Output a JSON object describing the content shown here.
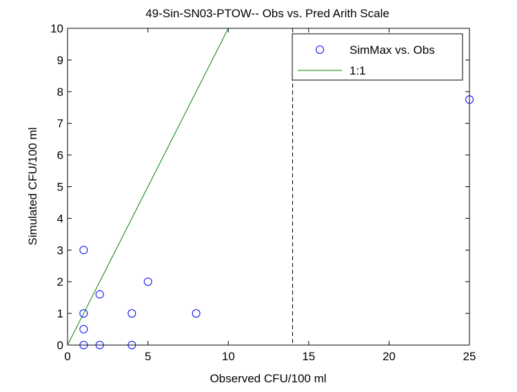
{
  "chart_data": {
    "type": "scatter",
    "title": "49-Sin-SN03-PTOW-- Obs vs. Pred Arith Scale",
    "xlabel": "Observed CFU/100 ml",
    "ylabel": "Simulated CFU/100 ml",
    "xlim": [
      0,
      25
    ],
    "ylim": [
      0,
      10
    ],
    "xticks": [
      0,
      5,
      10,
      15,
      20,
      25
    ],
    "yticks": [
      0,
      1,
      2,
      3,
      4,
      5,
      6,
      7,
      8,
      9,
      10
    ],
    "grid": false,
    "legend_position": "top-right",
    "series": [
      {
        "name": "SimMax vs. Obs",
        "kind": "scatter",
        "color": "#0000ff",
        "marker": "circle",
        "x": [
          1,
          1,
          1,
          1,
          2,
          2,
          4,
          4,
          5,
          8,
          25
        ],
        "y": [
          0,
          0.5,
          1,
          3,
          0,
          1.6,
          0,
          1,
          2,
          1,
          7.75
        ]
      },
      {
        "name": "1:1",
        "kind": "line",
        "color": "#008000",
        "x": [
          0,
          10
        ],
        "y": [
          0,
          10
        ]
      }
    ],
    "reference_line": {
      "axis": "x",
      "value": 14,
      "style": "dashed",
      "color": "#000000"
    }
  }
}
